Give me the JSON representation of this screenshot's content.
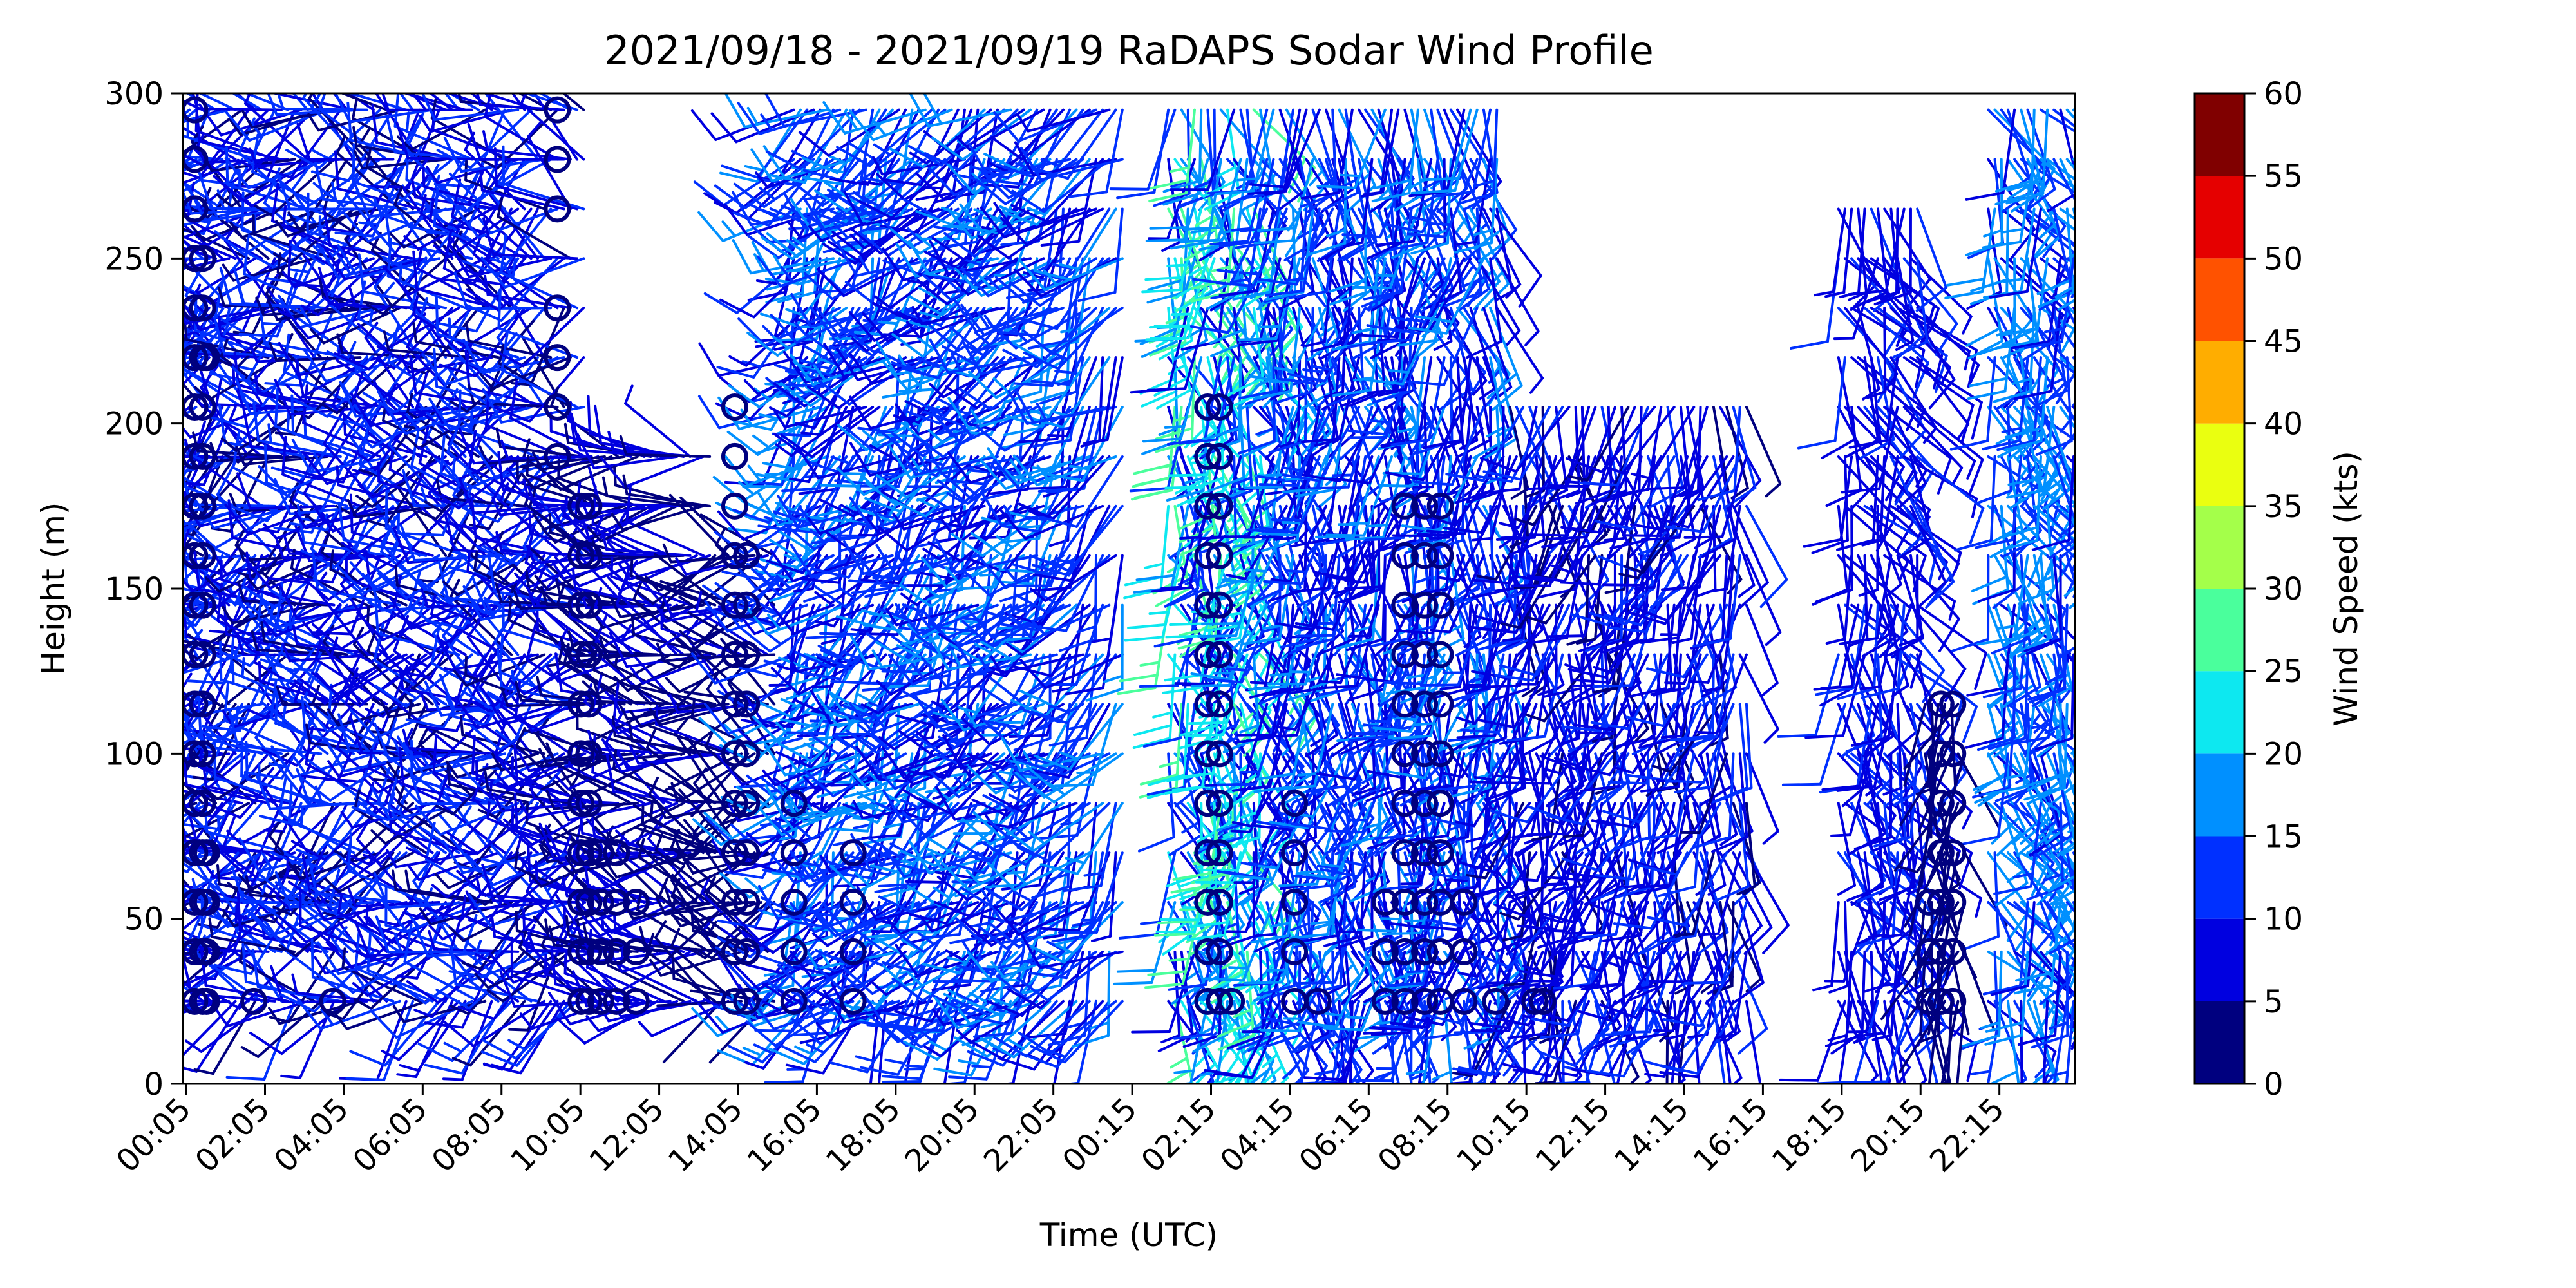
{
  "chart_data": {
    "type": "wind-barb",
    "title": "2021/09/18 - 2021/09/19 RaDAPS Sodar Wind Profile",
    "xlabel": "Time (UTC)",
    "ylabel": "Height (m)",
    "ylim": [
      0,
      300
    ],
    "yticks": [
      0,
      50,
      100,
      150,
      200,
      250,
      300
    ],
    "xlim_hours": [
      0,
      48
    ],
    "xticks": [
      {
        "label": "00:05",
        "hour": 0.083
      },
      {
        "label": "02:05",
        "hour": 2.083
      },
      {
        "label": "04:05",
        "hour": 4.083
      },
      {
        "label": "06:05",
        "hour": 6.083
      },
      {
        "label": "08:05",
        "hour": 8.083
      },
      {
        "label": "10:05",
        "hour": 10.083
      },
      {
        "label": "12:05",
        "hour": 12.083
      },
      {
        "label": "14:05",
        "hour": 14.083
      },
      {
        "label": "16:05",
        "hour": 16.083
      },
      {
        "label": "18:05",
        "hour": 18.083
      },
      {
        "label": "20:05",
        "hour": 20.083
      },
      {
        "label": "22:05",
        "hour": 22.083
      },
      {
        "label": "00:15",
        "hour": 24.083
      },
      {
        "label": "02:15",
        "hour": 26.083
      },
      {
        "label": "04:15",
        "hour": 28.083
      },
      {
        "label": "06:15",
        "hour": 30.083
      },
      {
        "label": "08:15",
        "hour": 32.083
      },
      {
        "label": "10:15",
        "hour": 34.083
      },
      {
        "label": "12:15",
        "hour": 36.083
      },
      {
        "label": "14:15",
        "hour": 38.083
      },
      {
        "label": "16:15",
        "hour": 40.083
      },
      {
        "label": "18:15",
        "hour": 42.083
      },
      {
        "label": "20:15",
        "hour": 44.083
      },
      {
        "label": "22:15",
        "hour": 46.083
      }
    ],
    "levels_m": [
      25,
      40,
      55,
      70,
      85,
      100,
      115,
      130,
      145,
      160,
      175,
      190,
      205,
      220,
      235,
      250,
      265,
      280,
      295
    ],
    "grid": false,
    "colorbar": {
      "label": "Wind Speed (kts)",
      "boundaries": [
        0,
        5,
        10,
        15,
        20,
        25,
        30,
        35,
        40,
        45,
        50,
        55,
        60
      ],
      "colors": [
        "#00007f",
        "#0000e0",
        "#0030ff",
        "#0090ff",
        "#0de8f0",
        "#4aff9c",
        "#a4ff4a",
        "#eaff10",
        "#ffad00",
        "#ff5200",
        "#e50000",
        "#800000"
      ]
    },
    "segments": [
      {
        "start_hour": 0.0,
        "end_hour": 10.2,
        "max_height": 295,
        "speed_min": 3,
        "speed_max": 14,
        "dir_min": 200,
        "dir_max": 330
      },
      {
        "start_hour": 10.2,
        "end_hour": 13.5,
        "max_height": 190,
        "speed_min": 2,
        "speed_max": 9,
        "dir_min": 240,
        "dir_max": 320
      },
      {
        "start_hour": 13.5,
        "end_hour": 15.0,
        "max_height": 160,
        "speed_min": 1,
        "speed_max": 6,
        "dir_min": 220,
        "dir_max": 330
      },
      {
        "start_hour": 15.5,
        "end_hour": 24.0,
        "max_height": 295,
        "speed_min": 6,
        "speed_max": 18,
        "dir_min": 180,
        "dir_max": 260
      },
      {
        "start_hour": 25.0,
        "end_hour": 27.5,
        "max_height": 295,
        "speed_min": 5,
        "speed_max": 28,
        "dir_min": 130,
        "dir_max": 200
      },
      {
        "start_hour": 27.5,
        "end_hour": 33.5,
        "max_height": 295,
        "speed_min": 5,
        "speed_max": 18,
        "dir_min": 140,
        "dir_max": 210
      },
      {
        "start_hour": 33.5,
        "end_hour": 39.7,
        "max_height": 205,
        "speed_min": 4,
        "speed_max": 12,
        "dir_min": 150,
        "dir_max": 220
      },
      {
        "start_hour": 42.0,
        "end_hour": 44.0,
        "max_height": 265,
        "speed_min": 5,
        "speed_max": 12,
        "dir_min": 120,
        "dir_max": 200
      },
      {
        "start_hour": 44.2,
        "end_hour": 45.2,
        "max_height": 115,
        "speed_min": 0,
        "speed_max": 3,
        "dir_min": 150,
        "dir_max": 220
      },
      {
        "start_hour": 45.8,
        "end_hour": 48.0,
        "max_height": 295,
        "speed_min": 8,
        "speed_max": 20,
        "dir_min": 120,
        "dir_max": 190
      }
    ],
    "calm_points": [
      {
        "hour": 0.3,
        "heights": [
          25,
          40,
          55,
          70,
          85,
          100,
          115,
          130,
          145,
          160,
          175,
          190,
          205,
          220,
          235,
          250,
          265,
          280,
          295
        ]
      },
      {
        "hour": 0.5,
        "heights": [
          25,
          40,
          55,
          70,
          85,
          100,
          115,
          130,
          145,
          160,
          175,
          190,
          205,
          220,
          235,
          250
        ]
      },
      {
        "hour": 0.6,
        "heights": [
          25,
          40,
          55,
          70,
          220
        ]
      },
      {
        "hour": 1.8,
        "heights": [
          25
        ]
      },
      {
        "hour": 3.8,
        "heights": [
          25
        ]
      },
      {
        "hour": 9.5,
        "heights": [
          190,
          205,
          220,
          235,
          265,
          280,
          295
        ]
      },
      {
        "hour": 10.1,
        "heights": [
          25,
          40,
          55,
          70,
          85,
          100,
          115,
          130,
          145,
          160,
          175
        ]
      },
      {
        "hour": 10.3,
        "heights": [
          25,
          40,
          55,
          70,
          85,
          100,
          115,
          130,
          145,
          160,
          175
        ]
      },
      {
        "hour": 10.6,
        "heights": [
          25,
          40,
          55,
          70
        ]
      },
      {
        "hour": 11.0,
        "heights": [
          25,
          40,
          55,
          70
        ]
      },
      {
        "hour": 11.5,
        "heights": [
          25,
          40,
          55
        ]
      },
      {
        "hour": 14.0,
        "heights": [
          25,
          40,
          55,
          70,
          85,
          100,
          115,
          130,
          145,
          160,
          175,
          190,
          205
        ]
      },
      {
        "hour": 14.3,
        "heights": [
          25,
          40,
          55,
          70,
          85,
          100,
          115,
          130,
          145,
          160
        ]
      },
      {
        "hour": 15.5,
        "heights": [
          25,
          40,
          55,
          70,
          85
        ]
      },
      {
        "hour": 17.0,
        "heights": [
          25,
          40,
          55,
          70
        ]
      },
      {
        "hour": 26.0,
        "heights": [
          25,
          40,
          55,
          70,
          85,
          100,
          115,
          130,
          145,
          160,
          175,
          190,
          205
        ]
      },
      {
        "hour": 26.3,
        "heights": [
          25,
          40,
          55,
          70,
          85,
          100,
          115,
          130,
          145,
          160,
          175,
          190,
          205
        ]
      },
      {
        "hour": 26.6,
        "heights": [
          25
        ]
      },
      {
        "hour": 28.2,
        "heights": [
          25,
          40,
          55,
          70,
          85
        ]
      },
      {
        "hour": 28.8,
        "heights": [
          25
        ]
      },
      {
        "hour": 30.5,
        "heights": [
          25,
          40,
          55
        ]
      },
      {
        "hour": 31.0,
        "heights": [
          25,
          40,
          55,
          70,
          85,
          100,
          115,
          130,
          145,
          160,
          175
        ]
      },
      {
        "hour": 31.5,
        "heights": [
          25,
          40,
          55,
          70,
          85,
          100,
          115,
          130,
          145,
          160,
          175
        ]
      },
      {
        "hour": 31.9,
        "heights": [
          25,
          40,
          55,
          70,
          85,
          100,
          115,
          130,
          145,
          160,
          175
        ]
      },
      {
        "hour": 32.5,
        "heights": [
          25,
          40,
          55
        ]
      },
      {
        "hour": 33.3,
        "heights": [
          25
        ]
      },
      {
        "hour": 34.3,
        "heights": [
          25
        ]
      },
      {
        "hour": 34.5,
        "heights": [
          25
        ]
      },
      {
        "hour": 44.3,
        "heights": [
          25,
          40,
          55
        ]
      },
      {
        "hour": 44.6,
        "heights": [
          25,
          40,
          55,
          70,
          85,
          100,
          115
        ]
      },
      {
        "hour": 44.9,
        "heights": [
          25,
          40,
          55,
          70,
          85,
          100,
          115
        ]
      }
    ]
  }
}
